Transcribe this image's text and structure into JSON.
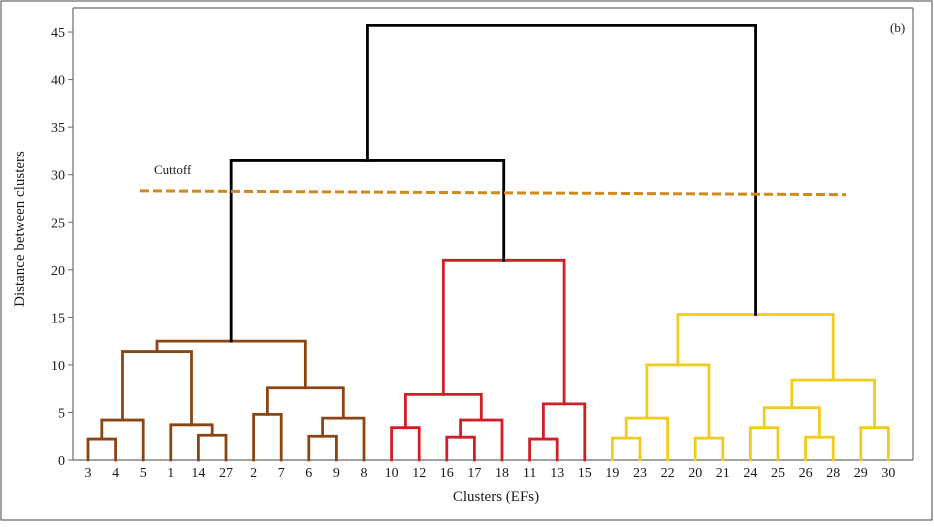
{
  "chart_data": {
    "type": "dendrogram",
    "panel_label": "(b)",
    "xlabel": "Clusters (EFs)",
    "ylabel": "Distance between clusters",
    "ylim": [
      0,
      46
    ],
    "yticks": [
      0,
      5,
      10,
      15,
      20,
      25,
      30,
      35,
      40,
      45
    ],
    "leaf_order": [
      "3",
      "4",
      "5",
      "1",
      "14",
      "27",
      "2",
      "7",
      "6",
      "9",
      "8",
      "10",
      "12",
      "16",
      "17",
      "18",
      "11",
      "13",
      "15",
      "19",
      "23",
      "22",
      "20",
      "21",
      "24",
      "25",
      "26",
      "28",
      "29",
      "30"
    ],
    "cutoff": {
      "label": "Cuttoff",
      "y_start": 28.3,
      "y_end": 27.9,
      "color": "#d08a1c"
    },
    "colors": {
      "brown": "#8b4513",
      "red": "#d01f25",
      "yellow": "#f1cb1d",
      "black": "#000000"
    },
    "merges": [
      {
        "a": "L:3",
        "b": "L:4",
        "h": 2.2,
        "color": "brown"
      },
      {
        "a": "M:0",
        "b": "L:5",
        "h": 4.2,
        "color": "brown"
      },
      {
        "a": "L:14",
        "b": "L:27",
        "h": 2.6,
        "color": "brown"
      },
      {
        "a": "L:1",
        "b": "M:2",
        "h": 3.7,
        "color": "brown"
      },
      {
        "a": "M:1",
        "b": "M:3",
        "h": 11.4,
        "color": "brown"
      },
      {
        "a": "L:2",
        "b": "L:7",
        "h": 4.8,
        "color": "brown"
      },
      {
        "a": "L:6",
        "b": "L:9",
        "h": 2.5,
        "color": "brown"
      },
      {
        "a": "M:6",
        "b": "L:8",
        "h": 4.4,
        "color": "brown"
      },
      {
        "a": "M:5",
        "b": "M:7",
        "h": 7.6,
        "color": "brown"
      },
      {
        "a": "M:4",
        "b": "M:8",
        "h": 12.5,
        "color": "brown"
      },
      {
        "a": "L:10",
        "b": "L:12",
        "h": 3.4,
        "color": "red"
      },
      {
        "a": "L:16",
        "b": "L:17",
        "h": 2.4,
        "color": "red"
      },
      {
        "a": "M:11",
        "b": "L:18",
        "h": 4.2,
        "color": "red"
      },
      {
        "a": "M:10",
        "b": "M:12",
        "h": 6.9,
        "color": "red"
      },
      {
        "a": "L:11",
        "b": "L:13",
        "h": 2.2,
        "color": "red"
      },
      {
        "a": "M:14",
        "b": "L:15",
        "h": 5.9,
        "color": "red"
      },
      {
        "a": "M:13",
        "b": "M:15",
        "h": 21.0,
        "color": "red"
      },
      {
        "a": "M:9",
        "b": "M:16",
        "h": 31.5,
        "color": "black"
      },
      {
        "a": "L:19",
        "b": "L:23",
        "h": 2.3,
        "color": "yellow"
      },
      {
        "a": "M:18",
        "b": "L:22",
        "h": 4.4,
        "color": "yellow"
      },
      {
        "a": "L:20",
        "b": "L:21",
        "h": 2.3,
        "color": "yellow"
      },
      {
        "a": "M:19",
        "b": "M:20",
        "h": 10.0,
        "color": "yellow"
      },
      {
        "a": "L:24",
        "b": "L:25",
        "h": 3.4,
        "color": "yellow"
      },
      {
        "a": "L:26",
        "b": "L:28",
        "h": 2.4,
        "color": "yellow"
      },
      {
        "a": "M:22",
        "b": "M:23",
        "h": 5.5,
        "color": "yellow"
      },
      {
        "a": "L:29",
        "b": "L:30",
        "h": 3.4,
        "color": "yellow"
      },
      {
        "a": "M:24",
        "b": "M:25",
        "h": 8.4,
        "color": "yellow"
      },
      {
        "a": "M:21",
        "b": "M:26",
        "h": 15.3,
        "color": "yellow"
      },
      {
        "a": "M:17",
        "b": "M:27",
        "h": 45.7,
        "color": "black"
      }
    ]
  }
}
